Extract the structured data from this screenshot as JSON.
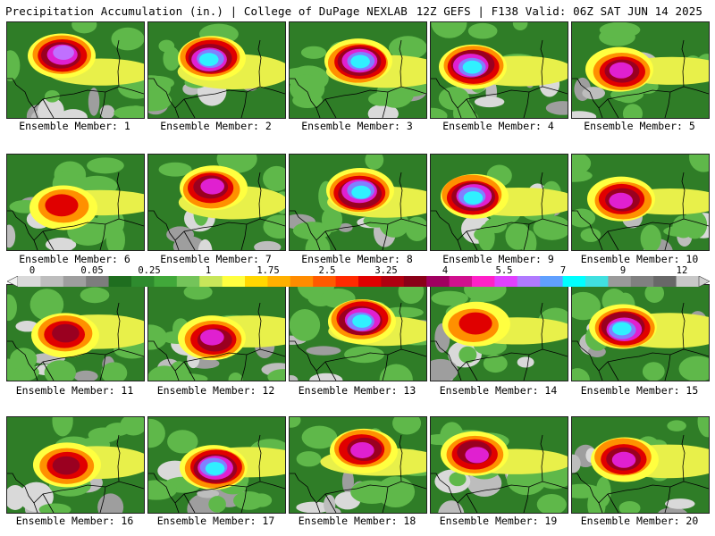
{
  "header": {
    "title_left": "Precipitation Accumulation (in.) | College of DuPage NEXLAB",
    "title_right": "12Z GEFS | F138 Valid: 06Z SAT JUN 14 2025"
  },
  "panels": [
    {
      "label": "Ensemble Member: 1",
      "peak_class": "pink"
    },
    {
      "label": "Ensemble Member: 2",
      "peak_class": "cyan"
    },
    {
      "label": "Ensemble Member: 3",
      "peak_class": "cyan"
    },
    {
      "label": "Ensemble Member: 4",
      "peak_class": "cyan"
    },
    {
      "label": "Ensemble Member: 5",
      "peak_class": "magenta"
    },
    {
      "label": "Ensemble Member: 6",
      "peak_class": "red"
    },
    {
      "label": "Ensemble Member: 7",
      "peak_class": "magenta"
    },
    {
      "label": "Ensemble Member: 8",
      "peak_class": "cyan"
    },
    {
      "label": "Ensemble Member: 9",
      "peak_class": "cyan"
    },
    {
      "label": "Ensemble Member: 10",
      "peak_class": "magenta"
    },
    {
      "label": "Ensemble Member: 11",
      "peak_class": "maroon"
    },
    {
      "label": "Ensemble Member: 12",
      "peak_class": "magenta"
    },
    {
      "label": "Ensemble Member: 13",
      "peak_class": "cyan"
    },
    {
      "label": "Ensemble Member: 14",
      "peak_class": "red"
    },
    {
      "label": "Ensemble Member: 15",
      "peak_class": "cyan"
    },
    {
      "label": "Ensemble Member: 16",
      "peak_class": "maroon"
    },
    {
      "label": "Ensemble Member: 17",
      "peak_class": "cyan"
    },
    {
      "label": "Ensemble Member: 18",
      "peak_class": "magenta"
    },
    {
      "label": "Ensemble Member: 19",
      "peak_class": "magenta"
    },
    {
      "label": "Ensemble Member: 20",
      "peak_class": "magenta"
    }
  ],
  "colorbar": {
    "tick_labels": [
      "0",
      "0.05",
      "0.25",
      "1",
      "1.75",
      "2.5",
      "3.25",
      "4",
      "5.5",
      "7",
      "9",
      "12"
    ],
    "colors": [
      "#d9d9d9",
      "#bdbdbd",
      "#9e9e9e",
      "#7d7d7d",
      "#1f6e1f",
      "#2e8b2e",
      "#41a83a",
      "#74c45a",
      "#c8e65a",
      "#ffff40",
      "#ffd700",
      "#ffb000",
      "#ff8c00",
      "#ff5a00",
      "#ff2a00",
      "#e00000",
      "#b00010",
      "#8a0018",
      "#a00060",
      "#d0108e",
      "#ff20c8",
      "#e040ff",
      "#b07aff",
      "#60a0ff",
      "#00ffff",
      "#40e0e0",
      "#9a9a9a",
      "#808080",
      "#686868",
      "#c8c8c8"
    ]
  },
  "colors": {
    "background": "#ffffff",
    "panel_base": "#3a8a2c",
    "coastline": "#000000"
  }
}
